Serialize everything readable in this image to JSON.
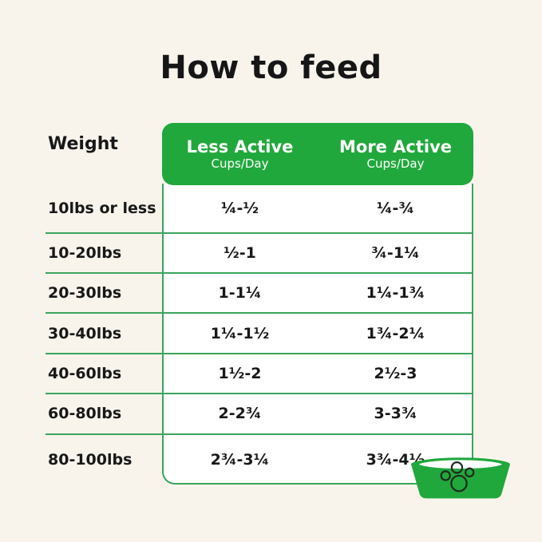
{
  "title": "How to feed",
  "table": {
    "weight_header": "Weight",
    "columns": [
      {
        "label": "Less Active",
        "sublabel": "Cups/Day"
      },
      {
        "label": "More Active",
        "sublabel": "Cups/Day"
      }
    ],
    "rows": [
      {
        "weight": "10lbs or less",
        "less_active": "¼-½",
        "more_active": "¼-¾"
      },
      {
        "weight": "10-20lbs",
        "less_active": "½-1",
        "more_active": "¾-1¼"
      },
      {
        "weight": "20-30lbs",
        "less_active": "1-1¼",
        "more_active": "1¼-1¾"
      },
      {
        "weight": "30-40lbs",
        "less_active": "1¼-1½",
        "more_active": "1¾-2¼"
      },
      {
        "weight": "40-60lbs",
        "less_active": "1½-2",
        "more_active": "2½-3"
      },
      {
        "weight": "60-80lbs",
        "less_active": "2-2¾",
        "more_active": "3-3¾"
      },
      {
        "weight": "80-100lbs",
        "less_active": "2¾-3¼",
        "more_active": "3¾-4½"
      }
    ]
  },
  "icons": {
    "bowl": "dog-bowl-icon",
    "paw": "paw-print-icon"
  },
  "colors": {
    "background": "#F8F4EC",
    "green": "#21A83C",
    "line_green": "#3BA55C",
    "text": "#181818",
    "panel_white": "#FFFFFF"
  },
  "chart_data": {
    "type": "table",
    "title": "How to feed",
    "columns": [
      "Weight",
      "Less Active Cups/Day",
      "More Active Cups/Day"
    ],
    "rows": [
      [
        "10lbs or less",
        "¼-½",
        "¼-¾"
      ],
      [
        "10-20lbs",
        "½-1",
        "¾-1¼"
      ],
      [
        "20-30lbs",
        "1-1¼",
        "1¼-1¾"
      ],
      [
        "30-40lbs",
        "1¼-1½",
        "1¾-2¼"
      ],
      [
        "40-60lbs",
        "1½-2",
        "2½-3"
      ],
      [
        "60-80lbs",
        "2-2¾",
        "3-3¾"
      ],
      [
        "80-100lbs",
        "2¾-3¼",
        "3¾-4½"
      ]
    ]
  }
}
